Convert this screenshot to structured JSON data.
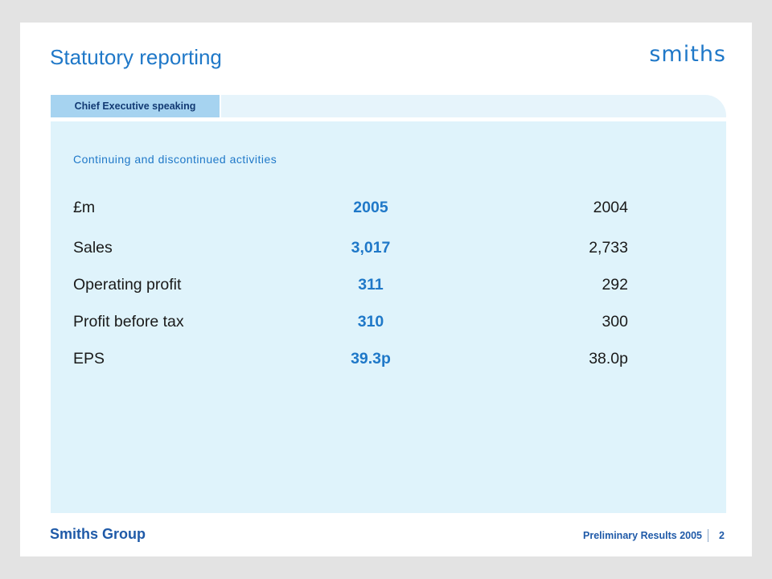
{
  "slide": {
    "title": "Statutory reporting",
    "logo_text": "smiths",
    "section_tab": "Chief Executive speaking",
    "subtitle": "Continuing and discontinued activities"
  },
  "table": {
    "headers": [
      "£m",
      "2005",
      "2004"
    ],
    "rows": [
      {
        "label": "Sales",
        "current": "3,017",
        "prior": "2,733"
      },
      {
        "label": "Operating profit",
        "current": "311",
        "prior": "292"
      },
      {
        "label": "Profit before tax",
        "current": "310",
        "prior": "300"
      },
      {
        "label": "EPS",
        "current": "39.3p",
        "prior": "38.0p"
      }
    ]
  },
  "footer": {
    "company": "Smiths Group",
    "event": "Preliminary Results 2005",
    "page_number": "2"
  },
  "colors": {
    "accent": "#1f78c8",
    "panel": "#dff3fb",
    "tab": "#a6d3f0"
  }
}
